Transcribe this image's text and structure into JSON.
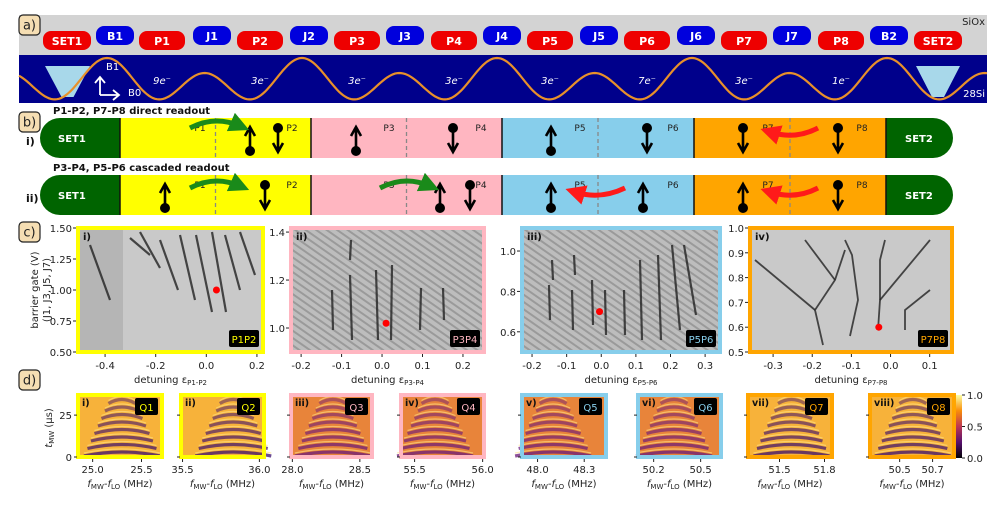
{
  "panel_a": {
    "label": "a)",
    "oxide_label": "SiOx",
    "substrate_label": "28Si",
    "field_labels": [
      "B1",
      "B0"
    ],
    "gates": [
      {
        "name": "SET1",
        "type": "set"
      },
      {
        "name": "B1",
        "type": "barrier"
      },
      {
        "name": "P1",
        "type": "plunger"
      },
      {
        "name": "J1",
        "type": "barrier"
      },
      {
        "name": "P2",
        "type": "plunger"
      },
      {
        "name": "J2",
        "type": "barrier"
      },
      {
        "name": "P3",
        "type": "plunger"
      },
      {
        "name": "J3",
        "type": "barrier"
      },
      {
        "name": "P4",
        "type": "plunger"
      },
      {
        "name": "J4",
        "type": "barrier"
      },
      {
        "name": "P5",
        "type": "plunger"
      },
      {
        "name": "J5",
        "type": "barrier"
      },
      {
        "name": "P6",
        "type": "plunger"
      },
      {
        "name": "J6",
        "type": "barrier"
      },
      {
        "name": "P7",
        "type": "plunger"
      },
      {
        "name": "J7",
        "type": "barrier"
      },
      {
        "name": "P8",
        "type": "plunger"
      },
      {
        "name": "B2",
        "type": "barrier"
      },
      {
        "name": "SET2",
        "type": "set"
      }
    ],
    "electron_counts": [
      "9e⁻",
      "3e⁻",
      "3e⁻",
      "3e⁻",
      "3e⁻",
      "7e⁻",
      "3e⁻",
      "1e⁻"
    ],
    "colors": {
      "plunger": "#ee0000",
      "barrier": "#0000dd",
      "oxide": "#d3d3d3",
      "silicon": "#00008b",
      "potential": "#e8902a",
      "set_well": "#a8d8ea"
    }
  },
  "panel_b": {
    "label": "b)",
    "set_labels": [
      "SET1",
      "SET2"
    ],
    "dot_labels": [
      "P1",
      "P2",
      "P3",
      "P4",
      "P5",
      "P6",
      "P7",
      "P8"
    ],
    "pair_colors": [
      "#ffff00",
      "#ffb6c1",
      "#87ceeb",
      "#ffa500"
    ],
    "set_color": "#006400",
    "rows": [
      {
        "roman": "i)",
        "title": "P1-P2, P7-P8 direct readout",
        "spins": [
          "up",
          "down",
          "up",
          "down",
          "up",
          "down",
          "down",
          "down"
        ],
        "transfers": [
          {
            "from": "P1",
            "to": "P2",
            "color": "green"
          },
          {
            "from": "P8",
            "to": "P7",
            "color": "red"
          }
        ]
      },
      {
        "roman": "ii)",
        "title": "P3-P4, P5-P6 cascaded readout",
        "spins": [
          "up",
          "down",
          "up",
          "down",
          "up",
          "up",
          "up",
          "down"
        ],
        "transfers": [
          {
            "from": "P1",
            "to": "P2",
            "color": "green"
          },
          {
            "from": "P3",
            "to": "P4",
            "color": "green"
          },
          {
            "from": "P6",
            "to": "P5",
            "color": "red"
          },
          {
            "from": "P8",
            "to": "P7",
            "color": "red"
          }
        ]
      }
    ]
  },
  "panel_c": {
    "label": "c)",
    "ylabel_line1": "barrier gate (V)",
    "ylabel_line2": "(J1, J3, J5, J7)",
    "xlabel_prefix": "detuning ε",
    "plots": [
      {
        "roman": "i)",
        "pair": "P1P2",
        "subscript": "P1-P2",
        "border": "#ffff00",
        "tag_text_color": "#ffff00",
        "xlim": [
          -0.507,
          0.224
        ],
        "ylim": [
          0.5,
          1.5
        ],
        "xticks": [
          "-0.4",
          "-0.2",
          "0.0",
          "0.2"
        ],
        "yticks": [
          "0.50",
          "0.75",
          "1.00",
          "1.25",
          "1.50"
        ],
        "operating_point": [
          0.04,
          1.0
        ]
      },
      {
        "roman": "ii)",
        "pair": "P3P4",
        "subscript": "P3-P4",
        "border": "#ffb6c1",
        "tag_text_color": "#ffb6c1",
        "xlim": [
          -0.225,
          0.252
        ],
        "ylim": [
          0.9,
          1.417
        ],
        "xticks": [
          "-0.2",
          "-0.1",
          "0.0",
          "0.1",
          "0.2"
        ],
        "yticks": [
          "1.0",
          "1.2",
          "1.4"
        ],
        "operating_point": [
          0.01,
          1.02
        ]
      },
      {
        "roman": "iii)",
        "pair": "P5P6",
        "subscript": "P5-P6",
        "border": "#87ceeb",
        "tag_text_color": "#87ceeb",
        "xlim": [
          -0.229,
          0.343
        ],
        "ylim": [
          0.5,
          1.114
        ],
        "xticks": [
          "-0.2",
          "-0.1",
          "0.0",
          "0.1",
          "0.2",
          "0.3"
        ],
        "yticks": [
          "0.6",
          "0.8",
          "1.0"
        ],
        "operating_point": [
          -0.005,
          0.7
        ]
      },
      {
        "roman": "iv)",
        "pair": "P7P8",
        "subscript": "P7-P8",
        "border": "#ffa500",
        "tag_text_color": "#ffa500",
        "xlim": [
          -0.359,
          0.157
        ],
        "ylim": [
          0.5,
          1.0
        ],
        "xticks": [
          "-0.3",
          "-0.2",
          "-0.1",
          "0.0",
          "0.1"
        ],
        "yticks": [
          "0.5",
          "0.6",
          "0.7",
          "0.8",
          "0.9",
          "1.0"
        ],
        "operating_point": [
          -0.03,
          0.6
        ]
      }
    ]
  },
  "panel_d": {
    "label": "d)",
    "ylabel": "t",
    "ylabel_sub": "MW",
    "ylabel_unit": " (μs)",
    "yticks": [
      "0",
      "25"
    ],
    "ylim": [
      0,
      37
    ],
    "xlabel_f": "f",
    "xlabel_sub1": "MW",
    "xlabel_mid": "-f",
    "xlabel_sub2": "LO",
    "xlabel_unit": " (MHz)",
    "colorbar_ticks": [
      "0.0",
      "0.5",
      "1.0"
    ],
    "plots": [
      {
        "roman": "i)",
        "qubit": "Q1",
        "border": "#ffff00",
        "xlim": [
          24.85,
          25.71
        ],
        "xticks": [
          "25.0",
          "25.5"
        ],
        "center": 25.3
      },
      {
        "roman": "ii)",
        "qubit": "Q2",
        "border": "#ffff00",
        "xlim": [
          35.49,
          36.03
        ],
        "xticks": [
          "35.5",
          "36.0"
        ],
        "center": 35.83
      },
      {
        "roman": "iii)",
        "qubit": "Q3",
        "border": "#ffb6c1",
        "xlim": [
          27.99,
          28.59
        ],
        "xticks": [
          "28.0",
          "28.5"
        ],
        "center": 28.3
      },
      {
        "roman": "iv)",
        "qubit": "Q4",
        "border": "#ffb6c1",
        "xlim": [
          55.4,
          56.01
        ],
        "xticks": [
          "55.5",
          "56.0"
        ],
        "center": 55.65
      },
      {
        "roman": "v)",
        "qubit": "Q5",
        "border": "#87ceeb",
        "xlim": [
          47.9,
          48.44
        ],
        "xticks": [
          "48.0",
          "48.3"
        ],
        "center": 48.1
      },
      {
        "roman": "vi)",
        "qubit": "Q6",
        "border": "#87ceeb",
        "xlim": [
          50.1,
          50.63
        ],
        "xticks": [
          "50.2",
          "50.5"
        ],
        "center": 50.33
      },
      {
        "roman": "vii)",
        "qubit": "Q7",
        "border": "#ffa500",
        "xlim": [
          51.29,
          51.85
        ],
        "xticks": [
          "51.5",
          "51.8"
        ],
        "center": 51.58
      },
      {
        "roman": "viii)",
        "qubit": "Q8",
        "border": "#ffa500",
        "xlim": [
          50.32,
          50.83
        ],
        "xticks": [
          "50.5",
          "50.7"
        ],
        "center": 50.58
      }
    ]
  }
}
